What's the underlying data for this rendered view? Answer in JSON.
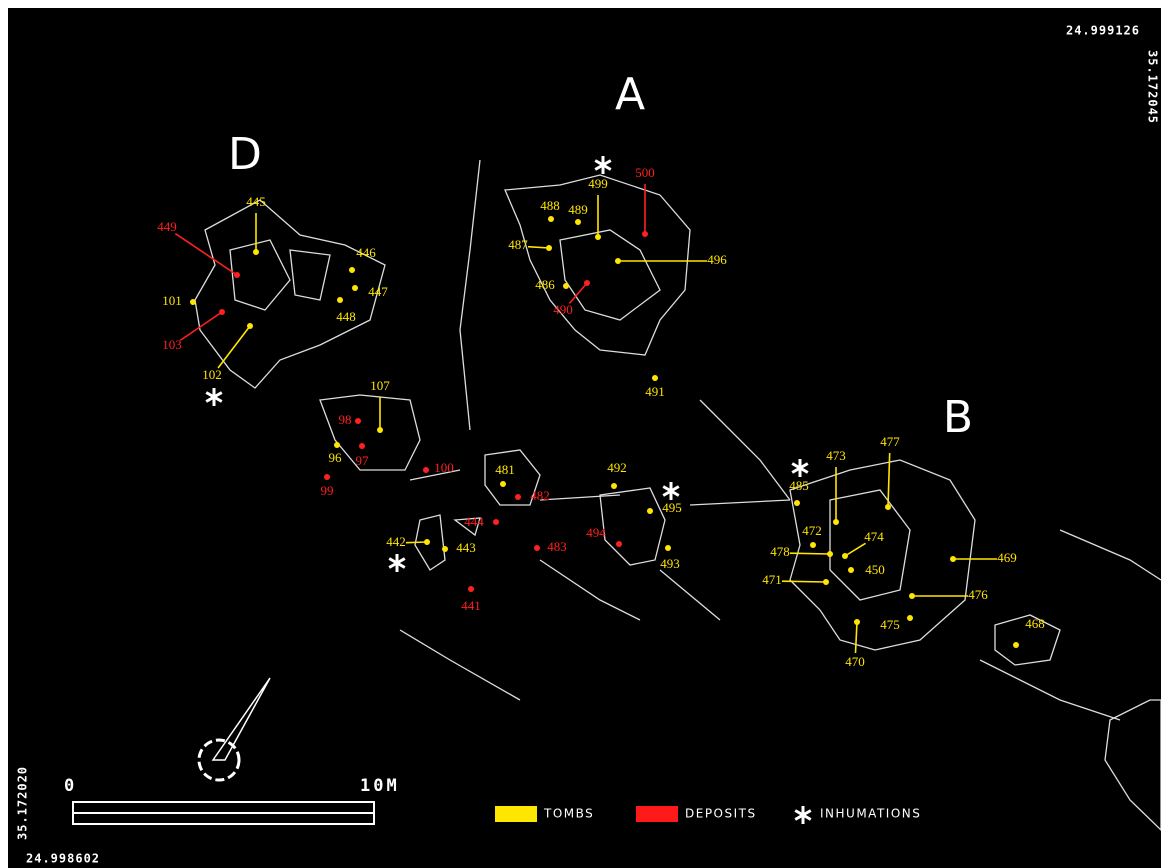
{
  "coordinates": {
    "top": "24.999126",
    "right": "35.172045",
    "left": "35.172020",
    "bottom": "24.998602"
  },
  "groups": [
    "A",
    "B",
    "D"
  ],
  "tombs": [
    "445",
    "446",
    "447",
    "448",
    "101",
    "102",
    "107",
    "96",
    "488",
    "489",
    "499",
    "487",
    "486",
    "496",
    "491",
    "481",
    "492",
    "495",
    "493",
    "442",
    "443",
    "473",
    "477",
    "485",
    "472",
    "474",
    "478",
    "450",
    "471",
    "469",
    "476",
    "475",
    "470",
    "468"
  ],
  "deposits": [
    "449",
    "103",
    "500",
    "490",
    "98",
    "97",
    "99",
    "100",
    "482",
    "444",
    "494",
    "483",
    "441"
  ],
  "legend": {
    "tombs": "TOMBS",
    "deposits": "DEPOSITS",
    "inhumations": "INHUMATIONS"
  },
  "scale": {
    "start": "0",
    "end": "10M"
  }
}
